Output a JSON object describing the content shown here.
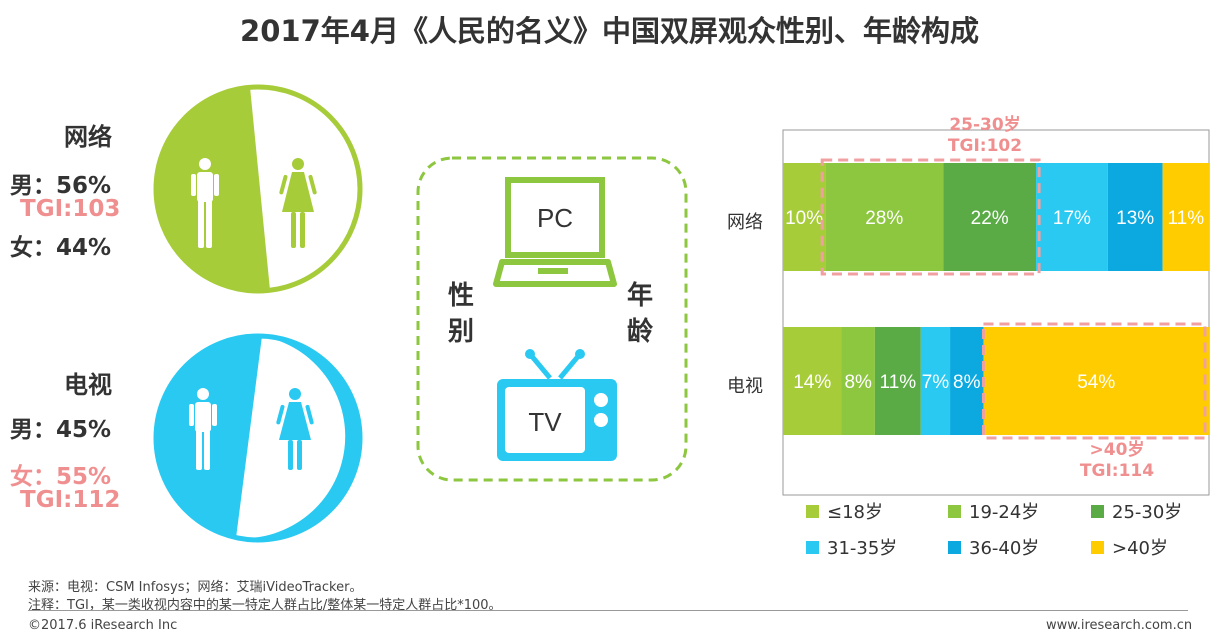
{
  "title": "2017年4月《人民的名义》中国双屏观众性别、年龄构成",
  "gender": {
    "network": {
      "label": "网络",
      "male_text": "男：56%",
      "tgi_text": "TGI:103",
      "female_text": "女：44%",
      "male": 56,
      "female": 44,
      "color": "#a7cc3a"
    },
    "tv": {
      "label": "电视",
      "male_text": "男：45%",
      "female_text": "女：55%",
      "tgi_text": "TGI:112",
      "male": 45,
      "female": 55,
      "color": "#29c9f2"
    }
  },
  "center": {
    "pc": "PC",
    "tv": "TV",
    "left": "性别",
    "right": "年龄",
    "border_color": "#8dc63f"
  },
  "chart_data": {
    "type": "bar",
    "orientation": "horizontal-stacked",
    "categories": [
      "网络",
      "电视"
    ],
    "series": [
      {
        "name": "≤18岁",
        "values": [
          10,
          14
        ],
        "color": "#a7cc3a"
      },
      {
        "name": "19-24岁",
        "values": [
          28,
          8
        ],
        "color": "#8dc63f"
      },
      {
        "name": "25-30岁",
        "values": [
          22,
          11
        ],
        "color": "#5aab46"
      },
      {
        "name": "31-35岁",
        "values": [
          17,
          7
        ],
        "color": "#29c9f2"
      },
      {
        "name": "36-40岁",
        "values": [
          13,
          8
        ],
        "color": "#0ba9e0"
      },
      {
        "name": ">40岁",
        "values": [
          11,
          54
        ],
        "color": "#ffcc00"
      }
    ],
    "annotations": [
      {
        "line1": "25-30岁",
        "line2": "TGI:102"
      },
      {
        "line1": ">40岁",
        "line2": "TGI:114"
      }
    ],
    "legend": "bottom"
  },
  "footer": {
    "source": "来源：电视：CSM Infosys；网络：艾瑞iVideoTracker。",
    "note": "注释：TGI，某一类收视内容中的某一特定人群占比/整体某一特定人群占比*100。",
    "copyright": "©2017.6 iResearch Inc",
    "website": "www.iresearch.com.cn"
  }
}
